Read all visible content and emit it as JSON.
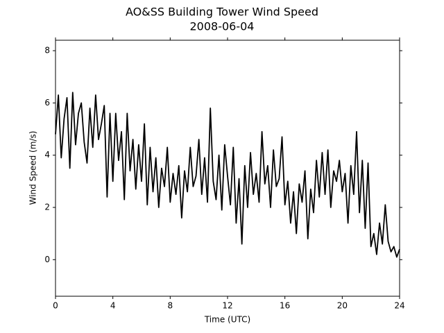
{
  "chart_data": {
    "type": "line",
    "title": "AO&SS Building Tower Wind Speed",
    "subtitle": "2008-06-04",
    "x_label": "Time (UTC)",
    "y_label": "Wind Speed (m/s)",
    "xlim": [
      0,
      24
    ],
    "xticks": [
      0,
      4,
      8,
      12,
      16,
      20,
      24
    ],
    "ylim": [
      -1.4,
      8.4
    ],
    "yticks": [
      0,
      2,
      4,
      6,
      8
    ],
    "color": "#000000",
    "x": [
      0.0,
      0.2,
      0.4,
      0.6,
      0.8,
      1.0,
      1.2,
      1.4,
      1.6,
      1.8,
      2.0,
      2.2,
      2.4,
      2.6,
      2.8,
      3.0,
      3.2,
      3.4,
      3.6,
      3.8,
      4.0,
      4.2,
      4.4,
      4.6,
      4.8,
      5.0,
      5.2,
      5.4,
      5.6,
      5.8,
      6.0,
      6.2,
      6.4,
      6.6,
      6.8,
      7.0,
      7.2,
      7.4,
      7.6,
      7.8,
      8.0,
      8.2,
      8.4,
      8.6,
      8.8,
      9.0,
      9.2,
      9.4,
      9.6,
      9.8,
      10.0,
      10.2,
      10.4,
      10.6,
      10.8,
      11.0,
      11.2,
      11.4,
      11.6,
      11.8,
      12.0,
      12.2,
      12.4,
      12.6,
      12.8,
      13.0,
      13.2,
      13.4,
      13.6,
      13.8,
      14.0,
      14.2,
      14.4,
      14.6,
      14.8,
      15.0,
      15.2,
      15.4,
      15.6,
      15.8,
      16.0,
      16.2,
      16.4,
      16.6,
      16.8,
      17.0,
      17.2,
      17.4,
      17.6,
      17.8,
      18.0,
      18.2,
      18.4,
      18.6,
      18.8,
      19.0,
      19.2,
      19.4,
      19.6,
      19.8,
      20.0,
      20.2,
      20.4,
      20.6,
      20.8,
      21.0,
      21.2,
      21.4,
      21.6,
      21.8,
      22.0,
      22.2,
      22.4,
      22.6,
      22.8,
      23.0,
      23.2,
      23.4,
      23.6,
      23.8,
      24.0
    ],
    "values": [
      4.8,
      6.3,
      3.9,
      5.4,
      6.2,
      3.5,
      6.4,
      4.4,
      5.6,
      6.0,
      4.5,
      3.7,
      5.8,
      4.3,
      6.3,
      4.6,
      5.2,
      5.9,
      2.4,
      5.6,
      3.0,
      5.6,
      3.8,
      4.9,
      2.3,
      5.6,
      3.4,
      4.6,
      2.7,
      4.4,
      3.0,
      5.2,
      2.1,
      4.3,
      2.6,
      3.9,
      2.0,
      3.5,
      2.8,
      4.3,
      2.2,
      3.3,
      2.5,
      3.6,
      1.6,
      3.4,
      2.6,
      4.3,
      2.8,
      3.2,
      4.6,
      2.5,
      3.9,
      2.2,
      5.8,
      3.0,
      2.3,
      4.0,
      1.9,
      4.4,
      3.2,
      2.1,
      4.3,
      1.4,
      3.1,
      0.6,
      3.6,
      2.0,
      4.1,
      2.5,
      3.3,
      2.2,
      4.9,
      2.9,
      3.6,
      2.0,
      4.2,
      2.8,
      3.1,
      4.7,
      2.1,
      3.0,
      1.4,
      2.6,
      1.0,
      2.9,
      2.2,
      3.4,
      0.8,
      2.7,
      1.8,
      3.8,
      2.4,
      4.1,
      2.5,
      4.2,
      2.0,
      3.4,
      3.0,
      3.8,
      2.6,
      3.3,
      1.4,
      3.6,
      2.5,
      4.9,
      1.8,
      3.8,
      1.2,
      3.7,
      0.5,
      1.0,
      0.2,
      1.4,
      0.6,
      2.1,
      0.7,
      0.3,
      0.5,
      0.1,
      0.4
    ]
  }
}
